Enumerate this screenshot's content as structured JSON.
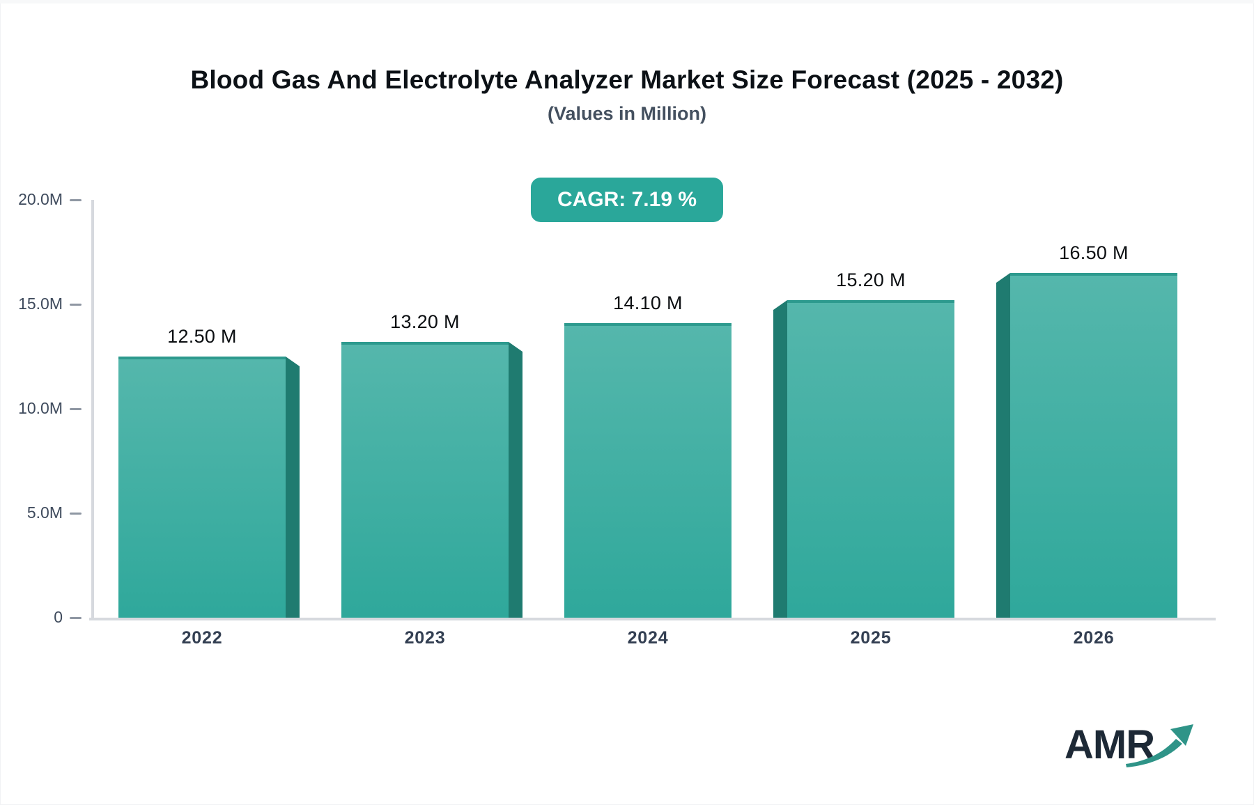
{
  "header": {
    "title": "Blood Gas And Electrolyte Analyzer Market Size Forecast (2025 - 2032)",
    "subtitle": "(Values in Million)"
  },
  "badge": {
    "text": "CAGR: 7.19 %",
    "background": "#2aa79a",
    "text_color": "#ffffff"
  },
  "chart_data": {
    "type": "bar",
    "title": "Blood Gas And Electrolyte Analyzer Market Size Forecast (2025 - 2032)",
    "subtitle": "(Values in Million)",
    "categories": [
      "2022",
      "2023",
      "2024",
      "2025",
      "2026"
    ],
    "values": [
      12.5,
      13.2,
      14.1,
      15.2,
      16.5
    ],
    "value_labels": [
      "12.50 M",
      "13.20 M",
      "14.10 M",
      "15.20 M",
      "16.50 M"
    ],
    "unit": "Million",
    "ylim": [
      0,
      20
    ],
    "yticks": {
      "values": [
        0,
        5,
        10,
        15,
        20
      ],
      "labels": [
        "0",
        "5.0M",
        "10.0M",
        "15.0M",
        "20.0M"
      ]
    },
    "xlabel": "",
    "ylabel": "",
    "grid": false,
    "legend": false,
    "bar_style": "3d-extruded"
  },
  "colors": {
    "bar_face_top": "#55b7ac",
    "bar_face_bottom": "#2fa89b",
    "bar_cap": "#2d9a8e",
    "bar_side": "#1f7b70",
    "axis_line": "#d6d9de",
    "tick": "#8f97a3",
    "y_label": "#3e4a5c",
    "x_label": "#333f52",
    "value_label": "#0b0e11",
    "badge_bg": "#2aa79a",
    "title": "#0c1116",
    "subtitle": "#44505f",
    "logo_text": "#1d2936",
    "logo_arrow": "#2f9488"
  },
  "logo": {
    "text": "AMR",
    "arrow_icon": "trend-up-arrow"
  }
}
